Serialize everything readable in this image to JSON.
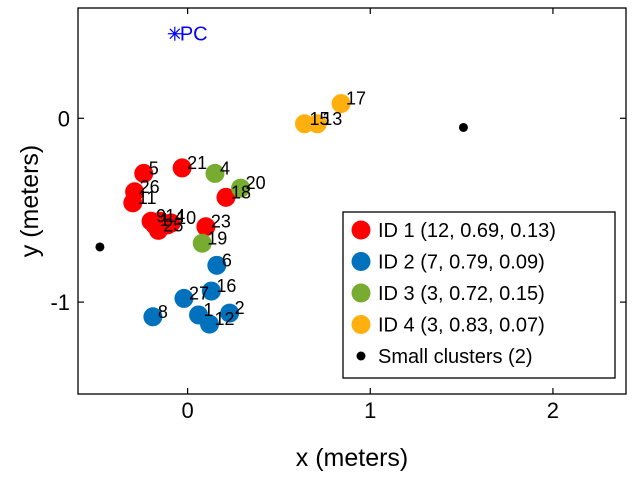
{
  "chart_data": {
    "type": "scatter",
    "xlabel": "x (meters)",
    "ylabel": "y (meters)",
    "xlim": [
      -0.6,
      2.4
    ],
    "ylim": [
      -1.5,
      0.6
    ],
    "xticks": [
      0,
      1,
      2
    ],
    "yticks": [
      -1,
      0
    ],
    "xtick_labels": [
      "0",
      "1",
      "2"
    ],
    "ytick_labels": [
      "-1",
      "0"
    ],
    "grid": false,
    "legend_position": "bottom-right",
    "pc_marker": {
      "label": "PC",
      "x": -0.07,
      "y": 0.46,
      "color": "#0000ff"
    },
    "series": [
      {
        "name": "ID 1 (12, 0.69, 0.13)",
        "color": "#ff0000",
        "points": [
          {
            "x": -0.24,
            "y": -0.3,
            "label": "5"
          },
          {
            "x": -0.03,
            "y": -0.27,
            "label": "21"
          },
          {
            "x": -0.29,
            "y": -0.4,
            "label": "26"
          },
          {
            "x": -0.3,
            "y": -0.46,
            "label": "11"
          },
          {
            "x": -0.2,
            "y": -0.56,
            "label": "9"
          },
          {
            "x": -0.15,
            "y": -0.56,
            "label": "14"
          },
          {
            "x": -0.09,
            "y": -0.57,
            "label": "10"
          },
          {
            "x": -0.16,
            "y": -0.61,
            "label": "25"
          },
          {
            "x": 0.1,
            "y": -0.59,
            "label": "23"
          },
          {
            "x": 0.21,
            "y": -0.43,
            "label": "18"
          },
          {
            "x": -0.18,
            "y": -0.58,
            "label": "1"
          },
          {
            "x": -0.11,
            "y": -0.58,
            "label": ""
          }
        ]
      },
      {
        "name": "ID 2 (7, 0.79, 0.09)",
        "color": "#0072bd",
        "points": [
          {
            "x": 0.16,
            "y": -0.8,
            "label": "6"
          },
          {
            "x": -0.19,
            "y": -1.08,
            "label": "8"
          },
          {
            "x": -0.02,
            "y": -0.98,
            "label": "27"
          },
          {
            "x": 0.13,
            "y": -0.94,
            "label": "16"
          },
          {
            "x": 0.06,
            "y": -1.07,
            "label": "1"
          },
          {
            "x": 0.23,
            "y": -1.06,
            "label": "2"
          },
          {
            "x": 0.12,
            "y": -1.12,
            "label": "12"
          }
        ]
      },
      {
        "name": "ID 3 (3, 0.72, 0.15)",
        "color": "#77ac30",
        "points": [
          {
            "x": 0.15,
            "y": -0.3,
            "label": "4"
          },
          {
            "x": 0.29,
            "y": -0.38,
            "label": "20"
          },
          {
            "x": 0.08,
            "y": -0.68,
            "label": "19"
          }
        ]
      },
      {
        "name": "ID 4 (3, 0.83, 0.07)",
        "color": "#ffb00f",
        "points": [
          {
            "x": 0.84,
            "y": 0.08,
            "label": "17"
          },
          {
            "x": 0.64,
            "y": -0.03,
            "label": "15"
          },
          {
            "x": 0.71,
            "y": -0.03,
            "label": "13"
          }
        ]
      },
      {
        "name": "Small clusters (2)",
        "color": "#000000",
        "small": true,
        "points": [
          {
            "x": -0.48,
            "y": -0.7,
            "label": ""
          },
          {
            "x": 1.51,
            "y": -0.05,
            "label": ""
          }
        ]
      }
    ]
  }
}
